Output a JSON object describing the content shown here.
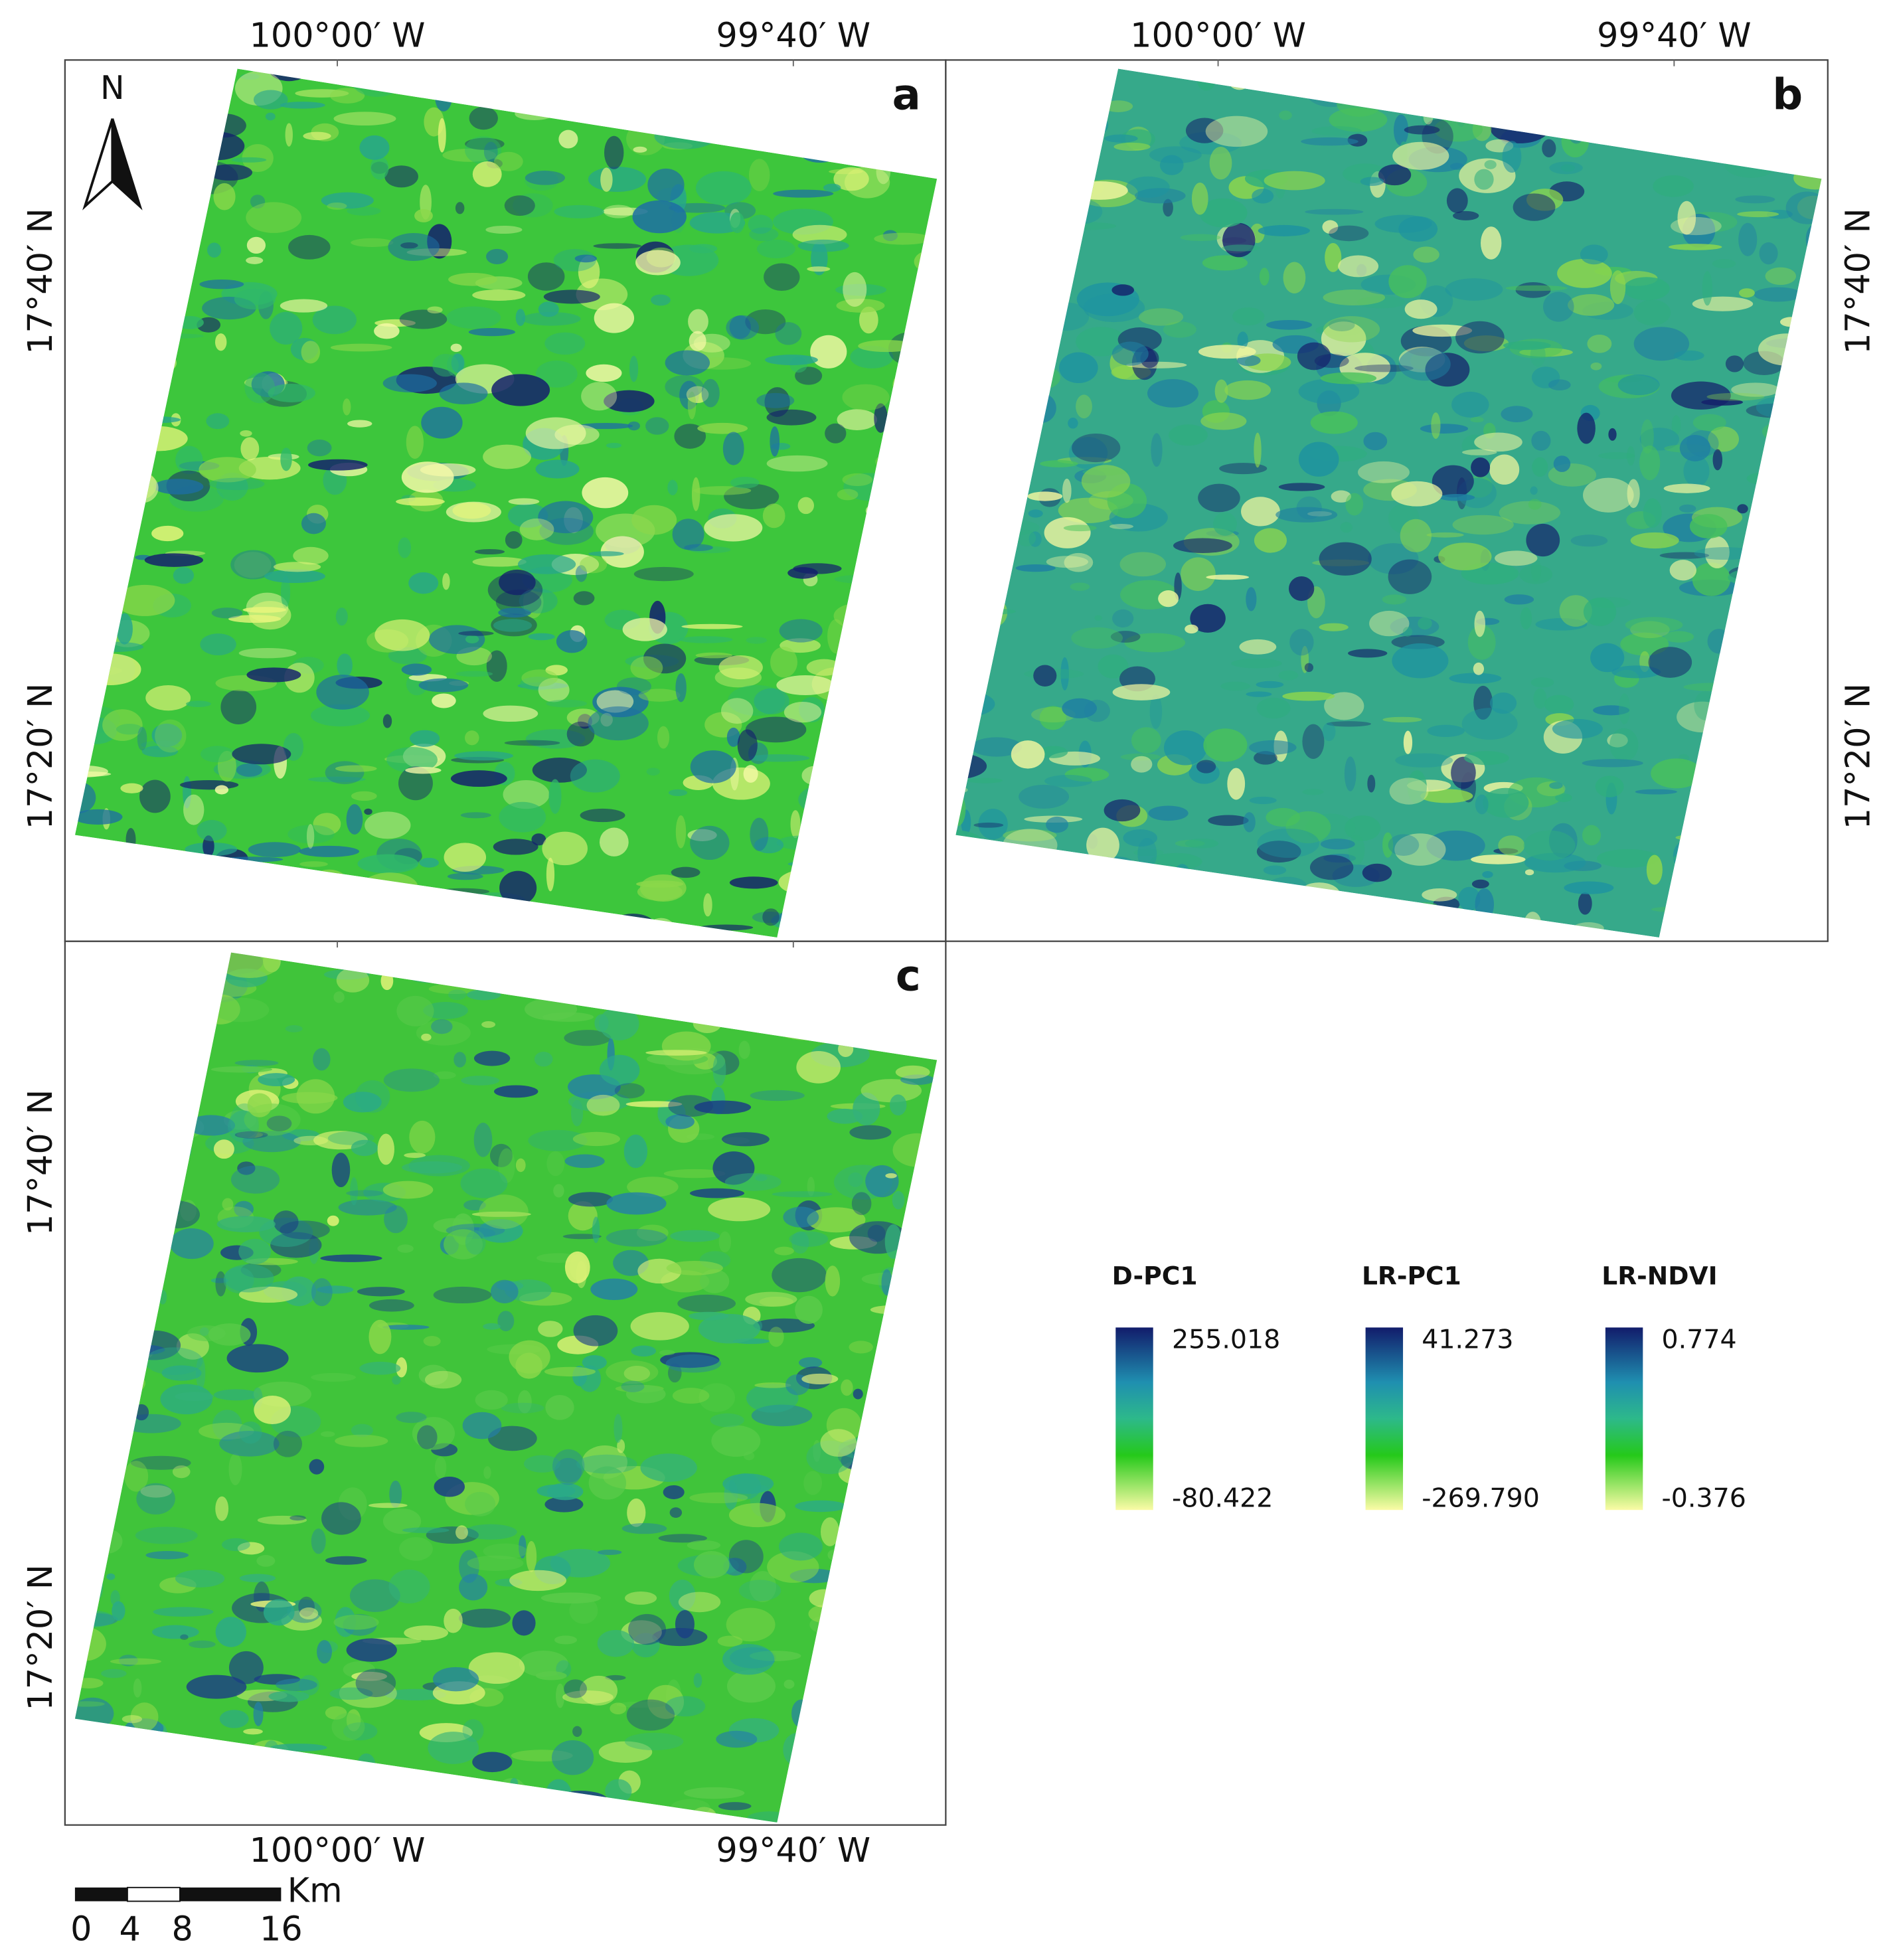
{
  "panels": [
    {
      "label": "a",
      "x_labels": [
        "100°00′ W",
        "99°40′ W"
      ],
      "y_labels": [
        "17°40′ N",
        "17°20′ N"
      ]
    },
    {
      "label": "b",
      "x_labels": [
        "100°00′ W",
        "99°40′ W"
      ],
      "y_labels": [
        "17°40′ N",
        "17°20′ N"
      ]
    },
    {
      "label": "c",
      "x_labels": [
        "100°00′ W",
        "99°40′ W"
      ],
      "y_labels": [
        "17°40′ N",
        "17°20′ N"
      ]
    }
  ],
  "north": "N",
  "legend": [
    {
      "title": "D-PC1",
      "max": "255.018",
      "min": "-80.422"
    },
    {
      "title": "LR-PC1",
      "max": "41.273",
      "min": "-269.790"
    },
    {
      "title": "LR-NDVI",
      "max": "0.774",
      "min": "-0.376"
    }
  ],
  "scale_bar": {
    "unit": "Km",
    "labels": [
      "0",
      "4",
      "8",
      "16"
    ]
  }
}
